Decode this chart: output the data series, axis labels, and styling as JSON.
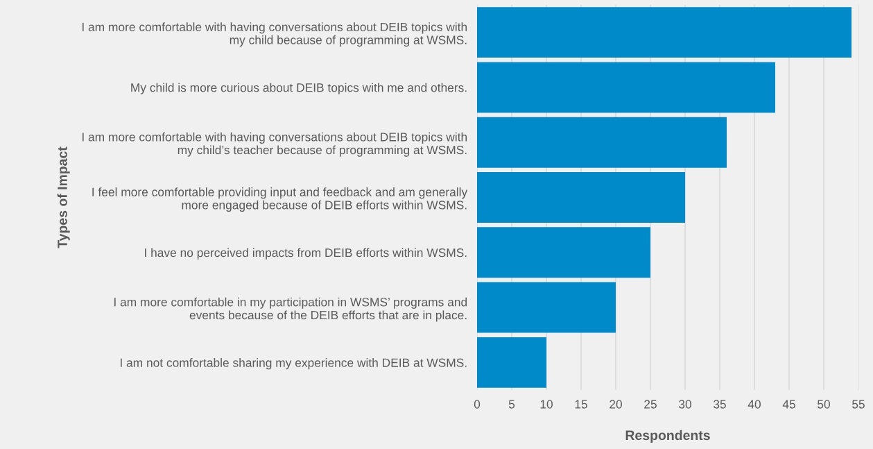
{
  "chart_data": {
    "type": "bar",
    "orientation": "horizontal",
    "xlabel": "Respondents",
    "ylabel": "Types of Impact",
    "categories": [
      "I am more comfortable with having conversations about DEIB topics with\nmy child because of programming at WSMS.",
      "My child is more curious about DEIB topics with me and others.",
      "I am more comfortable with having conversations about DEIB topics with\nmy child’s teacher because of programming at WSMS.",
      "I feel more comfortable providing input and feedback and am generally\nmore engaged because of DEIB efforts within WSMS.",
      "I have no perceived impacts from DEIB efforts within WSMS.",
      "I am more comfortable in my participation in WSMS’ programs and\nevents because of the DEIB efforts that are in place.",
      "I am not comfortable sharing my experience with DEIB at WSMS."
    ],
    "values": [
      54,
      43,
      36,
      30,
      25,
      20,
      10
    ],
    "color": "#008ac9",
    "xlim": [
      0,
      55
    ],
    "xticks": [
      0,
      5,
      10,
      15,
      20,
      25,
      30,
      35,
      40,
      45,
      50,
      55
    ],
    "grid": "x",
    "legend": false
  }
}
